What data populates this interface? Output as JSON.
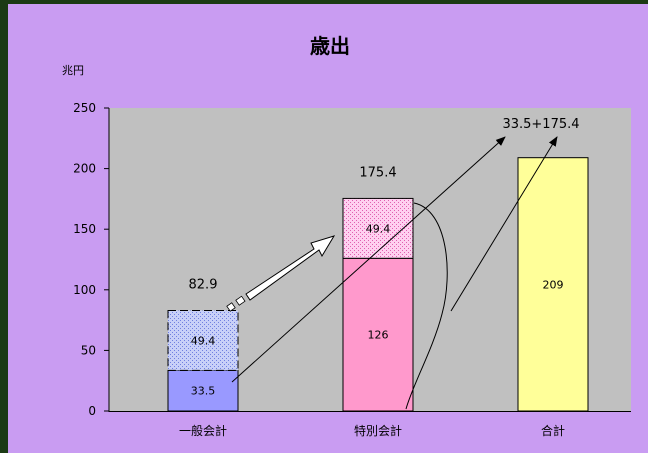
{
  "chart_data": {
    "type": "bar",
    "title": "歳出",
    "ylabel": "兆円",
    "ylim": [
      0,
      250
    ],
    "yticks": [
      0,
      50,
      100,
      150,
      200,
      250
    ],
    "categories": [
      "一般会計",
      "特別会計",
      "合計"
    ],
    "bars": [
      {
        "category": "一般会計",
        "segments": [
          {
            "value": 33.5,
            "label": "33.5",
            "style": "solid",
            "color": "#9999ff"
          },
          {
            "value": 49.4,
            "label": "49.4",
            "style": "dotted",
            "color": "#a8b4f0"
          }
        ],
        "total_label": "82.9"
      },
      {
        "category": "特別会計",
        "segments": [
          {
            "value": 126,
            "label": "126",
            "style": "solid",
            "color": "#ff99cc"
          },
          {
            "value": 49.4,
            "label": "49.4",
            "style": "dotted",
            "color": "#ffbfe8"
          }
        ],
        "total_label": "175.4"
      },
      {
        "category": "合計",
        "segments": [
          {
            "value": 209,
            "label": "209",
            "style": "solid",
            "color": "#ffff99"
          }
        ],
        "total_label": ""
      }
    ],
    "annotation": "33.5+175.4",
    "grid": false,
    "legend": "none"
  },
  "colors": {
    "plot_background": "#c0c0c0",
    "panel_background": "#c99cf2",
    "frame": "#1b3a14"
  }
}
